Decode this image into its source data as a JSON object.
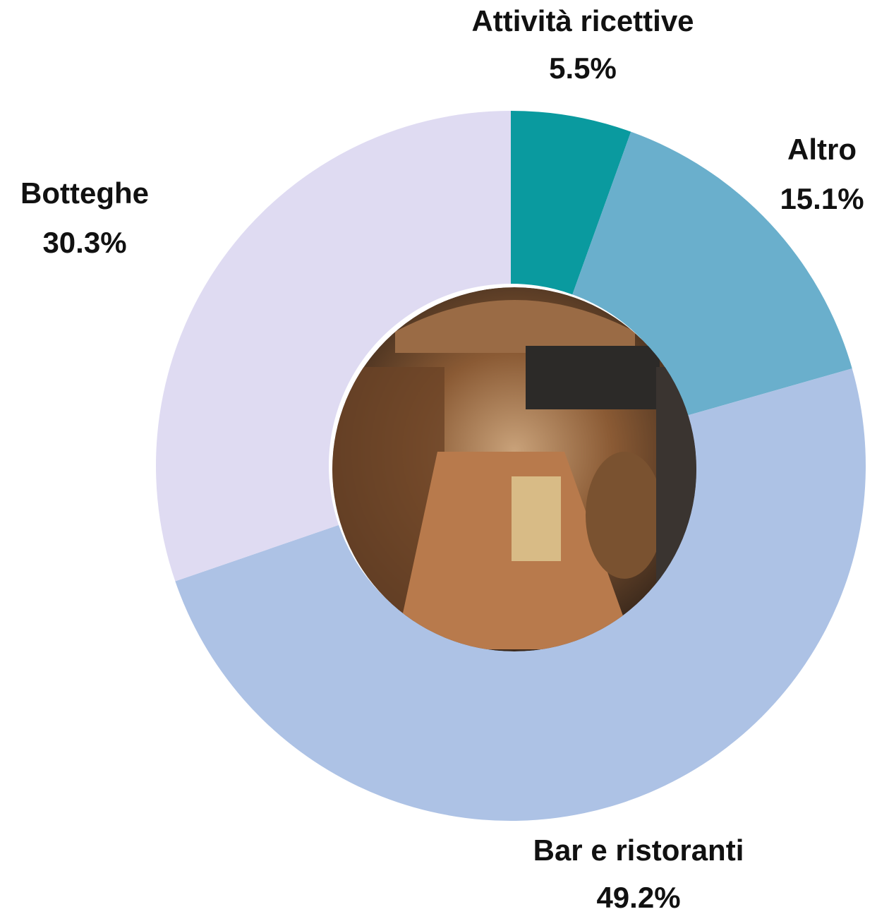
{
  "chart_data": {
    "type": "donut",
    "categories": [
      "Attività ricettive",
      "Altro",
      "Bar e ristoranti",
      "Botteghe"
    ],
    "values": [
      5.5,
      15.1,
      49.2,
      30.3
    ],
    "value_labels": [
      "5.5%",
      "15.1%",
      "49.2%",
      "30.3%"
    ],
    "colors": [
      "#0a9a9f",
      "#6aafcc",
      "#adc2e5",
      "#dfdbf2"
    ]
  }
}
